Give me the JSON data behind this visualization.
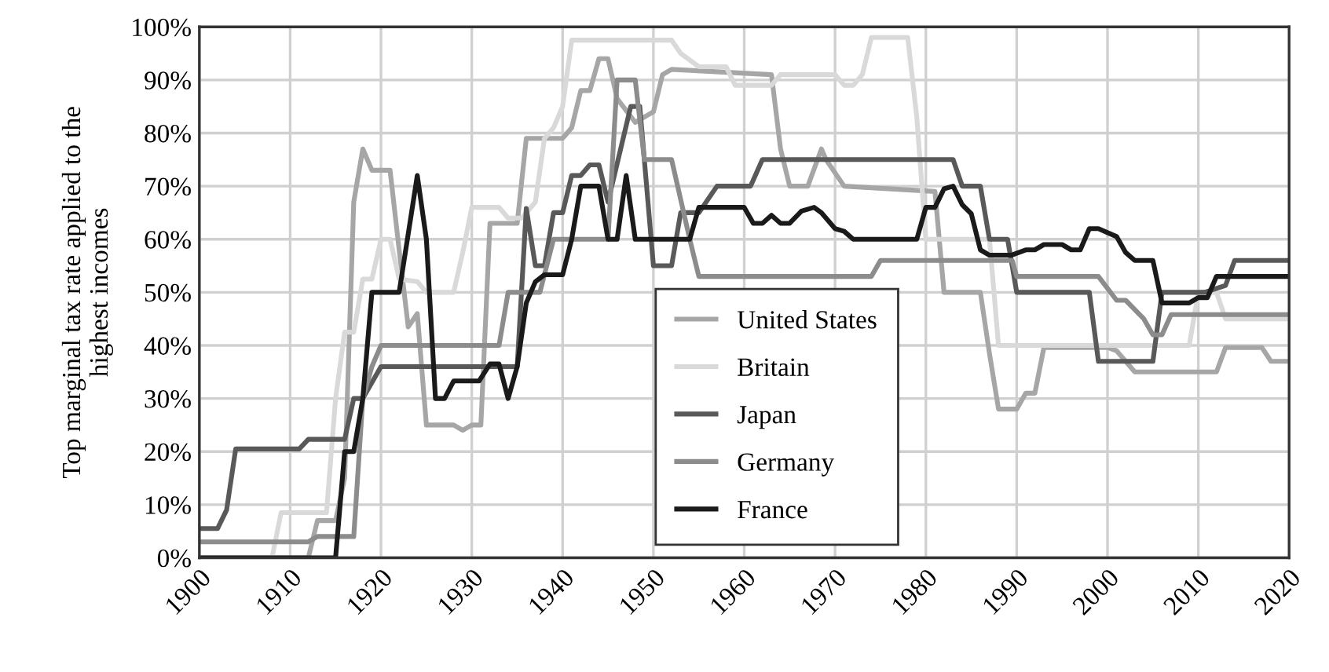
{
  "chart_data": {
    "type": "line",
    "ylabel": "Top marginal tax rate applied to the\nhighest incomes",
    "xlim": [
      1900,
      2020
    ],
    "xticks": [
      1900,
      1910,
      1920,
      1930,
      1940,
      1950,
      1960,
      1970,
      1980,
      1990,
      2000,
      2010,
      2020
    ],
    "ylim": [
      0,
      100
    ],
    "yticks": [
      {
        "value": 0,
        "label": "0%"
      },
      {
        "value": 10,
        "label": "10%"
      },
      {
        "value": 20,
        "label": "20%"
      },
      {
        "value": 30,
        "label": "30%"
      },
      {
        "value": 40,
        "label": "40%"
      },
      {
        "value": 50,
        "label": "50%"
      },
      {
        "value": 60,
        "label": "60%"
      },
      {
        "value": 70,
        "label": "70%"
      },
      {
        "value": 80,
        "label": "80%"
      },
      {
        "value": 90,
        "label": "90%"
      },
      {
        "value": 100,
        "label": "100%"
      }
    ],
    "grid": true,
    "legend": "bottom",
    "marker": "none",
    "line_style": "solid",
    "series": [
      {
        "name": "United States",
        "color": "#a6a6a6",
        "x": [
          1900,
          1912,
          1913,
          1915,
          1916,
          1917,
          1918,
          1919,
          1921,
          1922,
          1923,
          1924,
          1925,
          1928,
          1929,
          1930,
          1931,
          1932,
          1935,
          1936,
          1940,
          1941,
          1942,
          1943,
          1944,
          1945,
          1946,
          1948,
          1950,
          1951,
          1952,
          1963,
          1964,
          1965,
          1967,
          1968.5,
          1969,
          1971,
          1981,
          1982,
          1986,
          1987,
          1988,
          1990,
          1991,
          1992,
          1993,
          2000,
          2001,
          2003,
          2012,
          2013,
          2017,
          2018,
          2020
        ],
        "values": [
          0,
          0,
          7,
          7,
          15,
          67,
          77,
          73,
          73,
          58,
          43.5,
          46,
          25,
          25,
          24,
          25,
          25,
          63,
          63,
          79,
          79,
          81,
          88,
          88,
          94,
          94,
          86.5,
          82,
          84,
          91,
          92,
          91,
          77,
          70,
          70,
          77,
          75,
          70,
          69,
          50,
          50,
          38.5,
          28,
          28,
          31,
          31,
          39.6,
          39.6,
          39,
          35,
          35,
          39.6,
          39.6,
          37,
          37
        ]
      },
      {
        "name": "Britain",
        "color": "#d9d9d9",
        "x": [
          1900,
          1908,
          1909,
          1914,
          1915,
          1916,
          1917,
          1918,
          1919,
          1920,
          1921,
          1922,
          1924,
          1925,
          1928,
          1929,
          1930,
          1933,
          1934,
          1935.5,
          1937,
          1938,
          1939,
          1940,
          1941,
          1952,
          1953,
          1955,
          1958,
          1959,
          1963,
          1964,
          1970,
          1971,
          1972,
          1973,
          1974,
          1978,
          1979,
          1980,
          1987,
          1988,
          2009,
          2010,
          2012,
          2013,
          2020
        ],
        "values": [
          0,
          0,
          8.5,
          8.5,
          30,
          42.5,
          42.5,
          52.5,
          52.5,
          60,
          60,
          52.5,
          52,
          50,
          50,
          57.5,
          66,
          66,
          64,
          64,
          67,
          79,
          81,
          85,
          97.5,
          97.5,
          95,
          92.5,
          92.5,
          89,
          89,
          91,
          91,
          89,
          89,
          91,
          98,
          98,
          83,
          60,
          60,
          40,
          40,
          50,
          50,
          45,
          45
        ]
      },
      {
        "name": "Japan",
        "color": "#595959",
        "x": [
          1900,
          1902,
          1903,
          1904,
          1911,
          1912,
          1916,
          1917,
          1918,
          1920,
          1935,
          1936,
          1937,
          1938,
          1939,
          1940,
          1941,
          1942,
          1943,
          1944,
          1945,
          1947.5,
          1948.5,
          1950,
          1952,
          1953,
          1955,
          1957,
          1960.7,
          1962,
          1983,
          1984,
          1986,
          1987,
          1989,
          1990,
          1998,
          1999,
          2005,
          2006,
          2010.7,
          2013,
          2014,
          2020
        ],
        "values": [
          5.5,
          5.5,
          9,
          20.5,
          20.5,
          22.3,
          22.3,
          30,
          30,
          36,
          36,
          65.8,
          55,
          55,
          65,
          65,
          72,
          72,
          74,
          74,
          67,
          85,
          85,
          55,
          55,
          65,
          65,
          70,
          70,
          75,
          75,
          70,
          70,
          60,
          60,
          50,
          50,
          37,
          37,
          50,
          50,
          51.3,
          56,
          56
        ]
      },
      {
        "name": "Germany",
        "color": "#8c8c8c",
        "x": [
          1900,
          1912,
          1913,
          1917,
          1918,
          1919,
          1920,
          1933,
          1934,
          1937.5,
          1939,
          1945,
          1946,
          1948,
          1949,
          1952,
          1954,
          1955,
          1974,
          1975,
          1989.5,
          1990,
          1999,
          2001,
          2002,
          2004,
          2005,
          2006,
          2007,
          2020
        ],
        "values": [
          3,
          3,
          4,
          4,
          30,
          36,
          40,
          40,
          50,
          50,
          60,
          60,
          90,
          90,
          75,
          75,
          60,
          53,
          53,
          56,
          56,
          53,
          53,
          48.5,
          48.5,
          45,
          42,
          42,
          45.8,
          45.8
        ]
      },
      {
        "name": "France",
        "color": "#1a1a1a",
        "x": [
          1900,
          1915,
          1916,
          1917,
          1918,
          1919,
          1922,
          1924,
          1925,
          1926,
          1927,
          1928,
          1930.8,
          1932,
          1933,
          1934,
          1935,
          1936,
          1937,
          1938,
          1940,
          1941,
          1942,
          1944,
          1945,
          1946,
          1947,
          1948,
          1954,
          1955,
          1960,
          1961,
          1962,
          1963,
          1964,
          1965,
          1966.3,
          1967.7,
          1968.5,
          1970,
          1971,
          1972,
          1979,
          1980,
          1981,
          1982,
          1983,
          1984,
          1985,
          1986,
          1987,
          1989.4,
          1991,
          1992,
          1993,
          1995,
          1996,
          1997,
          1998,
          1999,
          2001,
          2002,
          2003,
          2005,
          2006,
          2009,
          2010,
          2011,
          2012,
          2020
        ],
        "values": [
          0,
          0,
          20,
          20,
          30,
          50,
          50,
          72,
          60,
          30,
          30,
          33.3,
          33.3,
          36.5,
          36.5,
          30,
          36,
          48,
          52,
          53.3,
          53.3,
          60,
          70,
          70,
          60,
          60,
          72,
          60,
          60,
          66,
          66,
          63,
          63,
          64.5,
          63,
          63,
          65.3,
          66,
          65,
          62,
          61.5,
          60,
          60,
          66,
          66,
          69.5,
          70,
          66.5,
          64.8,
          58,
          57,
          57,
          58,
          58,
          59,
          59,
          58,
          58,
          62,
          62,
          60.5,
          57.5,
          56,
          56,
          48,
          48,
          49,
          49,
          53,
          53
        ]
      }
    ]
  }
}
